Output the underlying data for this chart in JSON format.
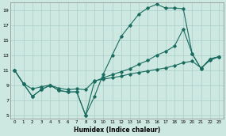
{
  "xlabel": "Humidex (Indice chaleur)",
  "bg_color": "#cce8e0",
  "grid_color": "#aacfc8",
  "line_color": "#1a6b60",
  "xlim": [
    -0.5,
    23.5
  ],
  "ylim": [
    4.5,
    20
  ],
  "xticks": [
    0,
    1,
    2,
    3,
    4,
    5,
    6,
    7,
    8,
    9,
    10,
    11,
    12,
    13,
    14,
    15,
    16,
    17,
    18,
    19,
    20,
    21,
    22,
    23
  ],
  "yticks": [
    5,
    7,
    9,
    11,
    13,
    15,
    17,
    19
  ],
  "line1_x": [
    0,
    1,
    2,
    3,
    4,
    5,
    6,
    7,
    8,
    9,
    10,
    11,
    12,
    13,
    14,
    15,
    16,
    17,
    18,
    19,
    20,
    21,
    22,
    23
  ],
  "line1_y": [
    11,
    9.2,
    7.5,
    8.4,
    9.0,
    8.3,
    8.1,
    8.1,
    5.0,
    7.5,
    10.5,
    13.0,
    15.5,
    17.0,
    18.5,
    19.3,
    19.8,
    19.3,
    19.3,
    19.2,
    13.2,
    11.2,
    12.5,
    12.8
  ],
  "line2_x": [
    0,
    1,
    2,
    3,
    4,
    5,
    6,
    7,
    8,
    9,
    10,
    11,
    12,
    13,
    14,
    15,
    16,
    17,
    18,
    19,
    20,
    21,
    22,
    23
  ],
  "line2_y": [
    11,
    9.2,
    7.5,
    8.4,
    9.0,
    8.3,
    8.1,
    8.1,
    5.0,
    9.5,
    10.0,
    10.4,
    10.8,
    11.2,
    11.8,
    12.3,
    13.0,
    13.5,
    14.2,
    16.5,
    13.2,
    11.2,
    12.5,
    12.8
  ],
  "line3_x": [
    0,
    1,
    2,
    3,
    4,
    5,
    6,
    7,
    8,
    9,
    10,
    11,
    12,
    13,
    14,
    15,
    16,
    17,
    18,
    19,
    20,
    21,
    22,
    23
  ],
  "line3_y": [
    11,
    9.2,
    8.5,
    8.8,
    9.0,
    8.6,
    8.4,
    8.5,
    8.4,
    9.6,
    9.8,
    10.0,
    10.2,
    10.5,
    10.7,
    10.9,
    11.1,
    11.3,
    11.6,
    12.0,
    12.2,
    11.3,
    12.3,
    12.8
  ]
}
